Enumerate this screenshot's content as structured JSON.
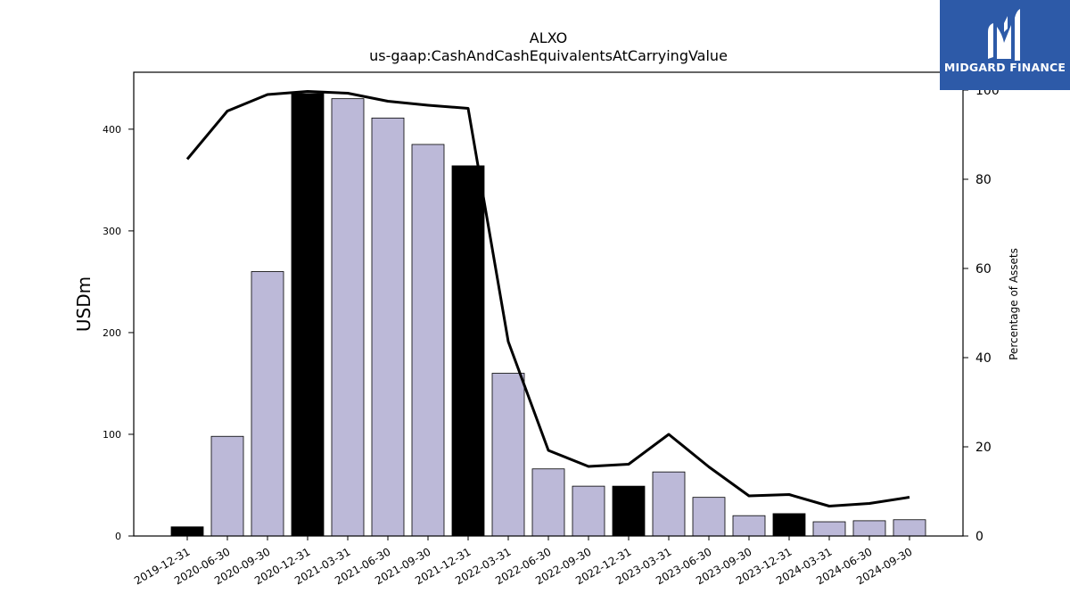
{
  "chart_data": {
    "type": "bar",
    "title": "ALXO",
    "subtitle": "us-gaap:CashAndCashEquivalentsAtCarryingValue",
    "ylabel": "USDm",
    "y2label": "Percentage of Assets",
    "ylim": [
      0,
      456
    ],
    "y2lim": [
      0,
      104
    ],
    "yticks": [
      0,
      100,
      200,
      300,
      400
    ],
    "y2ticks": [
      0,
      20,
      40,
      60,
      80,
      100
    ],
    "categories": [
      "2019-12-31",
      "2020-06-30",
      "2020-09-30",
      "2020-12-31",
      "2021-03-31",
      "2021-06-30",
      "2021-09-30",
      "2021-12-31",
      "2022-03-31",
      "2022-06-30",
      "2022-09-30",
      "2022-12-31",
      "2023-03-31",
      "2023-06-30",
      "2023-09-30",
      "2023-12-31",
      "2024-03-31",
      "2024-06-30",
      "2024-09-30"
    ],
    "series": [
      {
        "kind": "bar",
        "values": [
          9,
          98,
          260,
          435,
          430,
          411,
          385,
          364,
          160,
          66,
          49,
          49,
          63,
          38,
          20,
          22,
          14,
          15,
          16
        ],
        "annual_flags": [
          true,
          false,
          false,
          true,
          false,
          false,
          false,
          true,
          false,
          false,
          false,
          true,
          false,
          false,
          false,
          true,
          false,
          false,
          false
        ],
        "color_quarterly": "#bcb9d8",
        "color_annual": "#000000"
      },
      {
        "kind": "line",
        "axis": "right",
        "values": [
          84.5,
          95.3,
          99.0,
          99.7,
          99.3,
          97.5,
          96.6,
          95.9,
          43.6,
          19.2,
          15.6,
          16.1,
          22.8,
          15.5,
          9.0,
          9.3,
          6.7,
          7.3,
          8.7
        ],
        "color": "#000000"
      }
    ]
  },
  "logo": {
    "text": "MIDGARD FINANCE",
    "background": "#2d5aa8"
  }
}
